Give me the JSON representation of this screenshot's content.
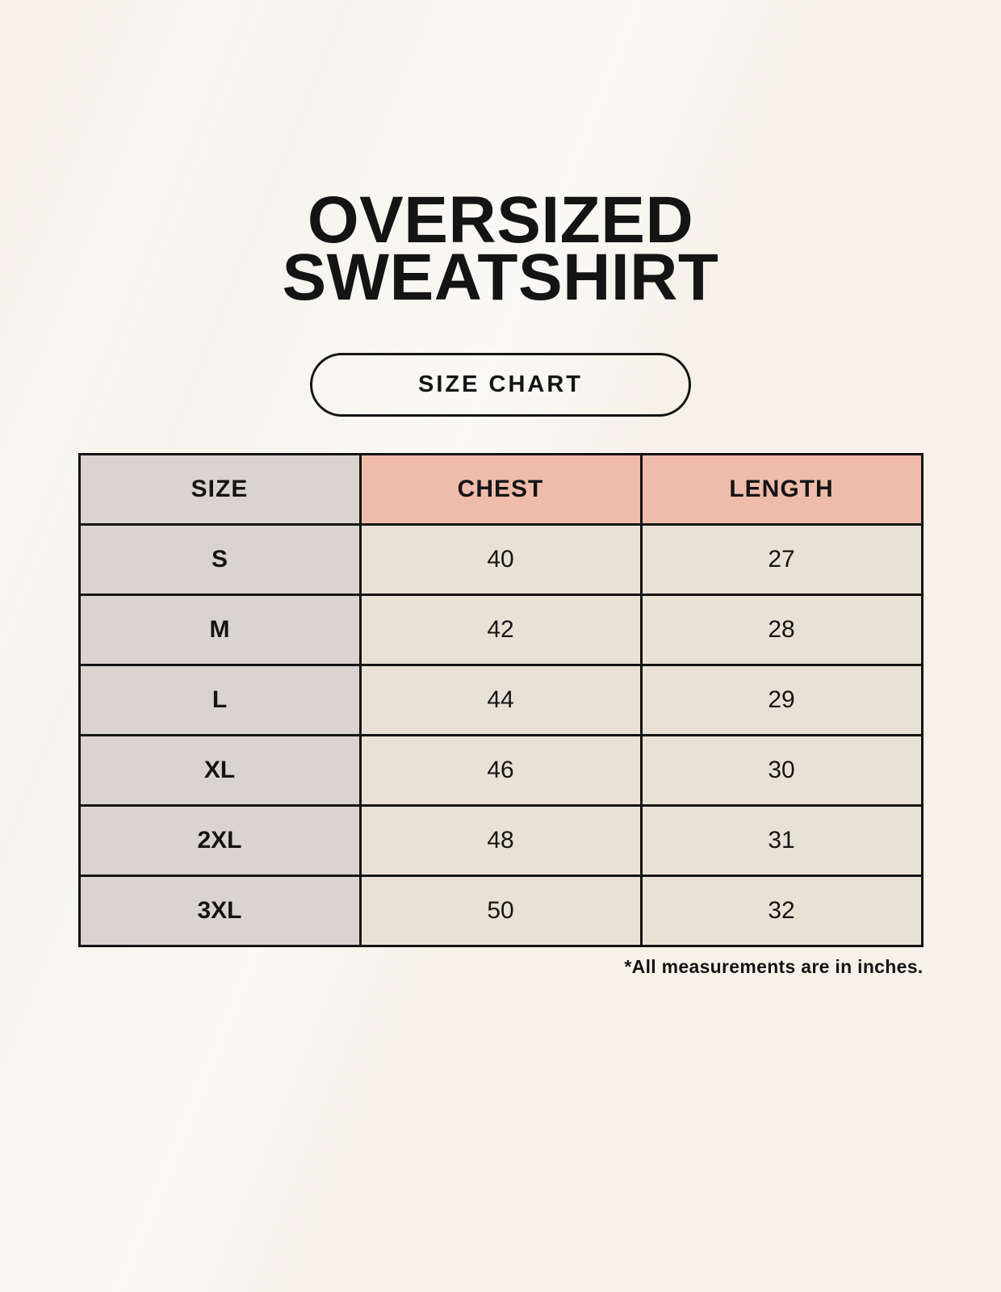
{
  "header": {
    "title_line1": "OVERSIZED",
    "title_line2": "SWEATSHIRT",
    "badge_label": "SIZE CHART"
  },
  "footnote": "*All measurements are in inches.",
  "colors": {
    "background": "#F6F2EA",
    "ink": "#141414",
    "header_pink": "#EFBCAB",
    "size_column_gray": "#DAD4D0",
    "cell_beige": "#E8E1D6"
  },
  "chart_data": {
    "type": "table",
    "title": "Oversized Sweatshirt Size Chart",
    "columns": [
      "SIZE",
      "CHEST",
      "LENGTH"
    ],
    "rows": [
      [
        "S",
        "40",
        "27"
      ],
      [
        "M",
        "42",
        "28"
      ],
      [
        "L",
        "44",
        "29"
      ],
      [
        "XL",
        "46",
        "30"
      ],
      [
        "2XL",
        "48",
        "31"
      ],
      [
        "3XL",
        "50",
        "32"
      ]
    ],
    "units": "inches",
    "legend_position": "none",
    "grid": true
  }
}
